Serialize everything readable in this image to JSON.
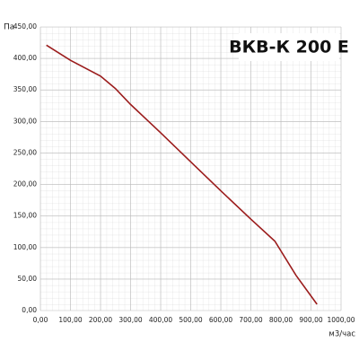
{
  "chart_data": {
    "type": "line",
    "title": "ВКВ-К 200 Е",
    "ylabel": "Па",
    "xlabel": "м3/час",
    "x": [
      20,
      100,
      200,
      250,
      300,
      400,
      500,
      600,
      700,
      780,
      850,
      920
    ],
    "series": [
      {
        "color": "#9b1c1c",
        "values": [
          421,
          397,
          372,
          352,
          327,
          282,
          236,
          190,
          145,
          110,
          56,
          10
        ]
      }
    ],
    "xlim": [
      0,
      1000
    ],
    "ylim": [
      0,
      450
    ],
    "xticks": [
      {
        "value": 0,
        "label": "0,00"
      },
      {
        "value": 100,
        "label": "100,00"
      },
      {
        "value": 200,
        "label": "200,00"
      },
      {
        "value": 300,
        "label": "300,00"
      },
      {
        "value": 400,
        "label": "400,00"
      },
      {
        "value": 500,
        "label": "500,00"
      },
      {
        "value": 600,
        "label": "600,00"
      },
      {
        "value": 700,
        "label": "700,00"
      },
      {
        "value": 800,
        "label": "800,00"
      },
      {
        "value": 900,
        "label": "900,00"
      },
      {
        "value": 1000,
        "label": "1000,00"
      }
    ],
    "yticks": [
      {
        "value": 0,
        "label": "0,00"
      },
      {
        "value": 50,
        "label": "50,00"
      },
      {
        "value": 100,
        "label": "100,00"
      },
      {
        "value": 150,
        "label": "150,00"
      },
      {
        "value": 200,
        "label": "200,00"
      },
      {
        "value": 250,
        "label": "250,00"
      },
      {
        "value": 300,
        "label": "300,00"
      },
      {
        "value": 350,
        "label": "350,00"
      },
      {
        "value": 400,
        "label": "400,00"
      },
      {
        "value": 450,
        "label": "450,00"
      }
    ],
    "grid": true
  }
}
